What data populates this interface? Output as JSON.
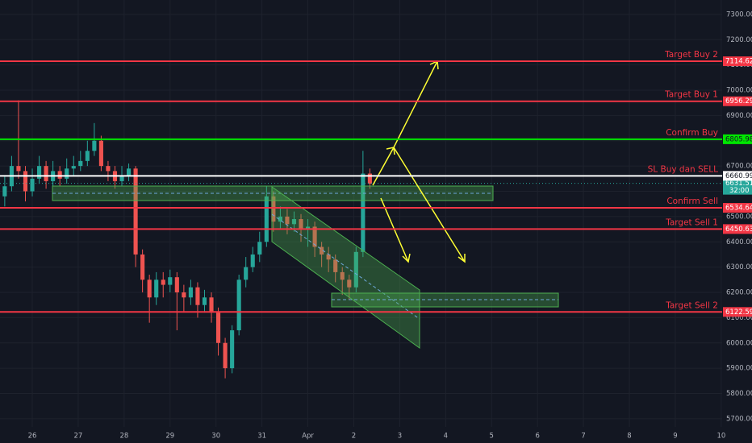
{
  "chart_data": {
    "type": "candlestick",
    "xlim": [
      -0.703,
      15.02
    ],
    "ylim": [
      5604,
      7357
    ],
    "xticks": [
      {
        "value": 0,
        "label": "26"
      },
      {
        "value": 1,
        "label": "27"
      },
      {
        "value": 2,
        "label": "28"
      },
      {
        "value": 3,
        "label": "29"
      },
      {
        "value": 4,
        "label": "30"
      },
      {
        "value": 5,
        "label": "31"
      },
      {
        "value": 6,
        "label": "Apr"
      },
      {
        "value": 7,
        "label": "2"
      },
      {
        "value": 8,
        "label": "3"
      },
      {
        "value": 9,
        "label": "4"
      },
      {
        "value": 10,
        "label": "5"
      },
      {
        "value": 11,
        "label": "6"
      },
      {
        "value": 12,
        "label": "7"
      },
      {
        "value": 13,
        "label": "8"
      },
      {
        "value": 14,
        "label": "9"
      },
      {
        "value": 15,
        "label": "10"
      }
    ],
    "yticks": [
      {
        "value": 5700,
        "label": "5700.00"
      },
      {
        "value": 5800,
        "label": "5800.00"
      },
      {
        "value": 5900,
        "label": "5900.00"
      },
      {
        "value": 6000,
        "label": "6000.00"
      },
      {
        "value": 6100,
        "label": "6100.00"
      },
      {
        "value": 6200,
        "label": "6200.00"
      },
      {
        "value": 6300,
        "label": "6300.00"
      },
      {
        "value": 6400,
        "label": "6400.00"
      },
      {
        "value": 6500,
        "label": "6500.00"
      },
      {
        "value": 6600,
        "label": "6600.00"
      },
      {
        "value": 6700,
        "label": "6700.00"
      },
      {
        "value": 6800,
        "label": "6800.00"
      },
      {
        "value": 6900,
        "label": "6900.00"
      },
      {
        "value": 7000,
        "label": "7000.00"
      },
      {
        "value": 7100,
        "label": "7100.00"
      },
      {
        "value": 7200,
        "label": "7200.00"
      },
      {
        "value": 7300,
        "label": "7300.00"
      }
    ],
    "grid": true,
    "up_color": "#26a69a",
    "down_color": "#ef5350",
    "x": [
      -0.6,
      -0.45,
      -0.3,
      -0.15,
      0,
      0.15,
      0.3,
      0.45,
      0.6,
      0.75,
      0.9,
      1.05,
      1.2,
      1.35,
      1.5,
      1.65,
      1.8,
      1.95,
      2.1,
      2.25,
      2.4,
      2.55,
      2.7,
      2.85,
      3,
      3.15,
      3.3,
      3.45,
      3.6,
      3.75,
      3.9,
      4.05,
      4.2,
      4.35,
      4.5,
      4.65,
      4.8,
      4.95,
      5.1,
      5.25,
      5.4,
      5.55,
      5.7,
      5.85,
      6,
      6.15,
      6.3,
      6.45,
      6.6,
      6.75,
      6.9,
      7.05,
      7.2,
      7.35
    ],
    "open": [
      6580,
      6620,
      6700,
      6680,
      6600,
      6650,
      6700,
      6640,
      6680,
      6650,
      6690,
      6700,
      6720,
      6760,
      6800,
      6700,
      6680,
      6640,
      6660,
      6690,
      6350,
      6250,
      6180,
      6250,
      6230,
      6260,
      6200,
      6180,
      6220,
      6150,
      6180,
      6120,
      6000,
      5900,
      6050,
      6250,
      6300,
      6350,
      6400,
      6580,
      6480,
      6500,
      6470,
      6490,
      6450,
      6460,
      6380,
      6350,
      6330,
      6280,
      6250,
      6220,
      6360,
      6670
    ],
    "high": [
      6660,
      6740,
      6960,
      6700,
      6690,
      6740,
      6720,
      6720,
      6700,
      6730,
      6740,
      6760,
      6800,
      6870,
      6820,
      6720,
      6700,
      6700,
      6710,
      6700,
      6370,
      6270,
      6280,
      6280,
      6290,
      6280,
      6230,
      6250,
      6240,
      6210,
      6200,
      6140,
      6020,
      6070,
      6270,
      6340,
      6380,
      6440,
      6620,
      6600,
      6540,
      6530,
      6520,
      6510,
      6490,
      6480,
      6400,
      6380,
      6350,
      6300,
      6270,
      6380,
      6760,
      6690
    ],
    "low": [
      6540,
      6600,
      6650,
      6560,
      6580,
      6630,
      6610,
      6620,
      6620,
      6630,
      6660,
      6680,
      6700,
      6740,
      6680,
      6640,
      6610,
      6620,
      6640,
      6300,
      6200,
      6080,
      6150,
      6180,
      6200,
      6050,
      6120,
      6150,
      6100,
      6120,
      6080,
      5950,
      5860,
      5880,
      6030,
      6220,
      6280,
      6320,
      6380,
      6440,
      6450,
      6430,
      6440,
      6400,
      6380,
      6340,
      6300,
      6280,
      6240,
      6190,
      6170,
      6200,
      6340,
      6610
    ],
    "close": [
      6620,
      6700,
      6680,
      6600,
      6650,
      6700,
      6640,
      6680,
      6650,
      6690,
      6700,
      6720,
      6760,
      6800,
      6700,
      6680,
      6640,
      6660,
      6690,
      6350,
      6250,
      6180,
      6250,
      6230,
      6260,
      6200,
      6180,
      6220,
      6150,
      6180,
      6120,
      6000,
      5900,
      6050,
      6250,
      6300,
      6350,
      6400,
      6580,
      6480,
      6500,
      6470,
      6490,
      6450,
      6460,
      6380,
      6350,
      6330,
      6280,
      6250,
      6220,
      6360,
      6670,
      6630
    ],
    "levels": [
      {
        "name": "Target Buy 2",
        "value": 7114.62,
        "color": "#f23645"
      },
      {
        "name": "Target Buy 1",
        "value": 6956.29,
        "color": "#f23645"
      },
      {
        "name": "Confirm Buy",
        "value": 6805.98,
        "color": "#00e600"
      },
      {
        "name": "SL Buy dan SELL",
        "value": 6660.99,
        "color": "#ffffff"
      },
      {
        "name": "Confirm Sell",
        "value": 6534.64,
        "color": "#f23645"
      },
      {
        "name": "Target Sell 1",
        "value": 6450.63,
        "color": "#f23645"
      },
      {
        "name": "Target Sell 2",
        "value": 6122.59,
        "color": "#f23645"
      }
    ],
    "last_price": {
      "value": 6631.51,
      "countdown": "32:00",
      "color": "#26a69a"
    }
  }
}
